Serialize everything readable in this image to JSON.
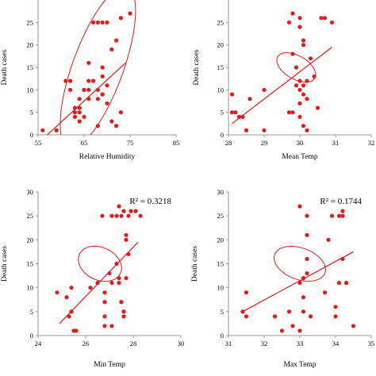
{
  "chart_data": [
    {
      "type": "scatter",
      "xlabel": "Relative Humidity",
      "ylabel": "Death cases",
      "xlim": [
        55,
        85
      ],
      "ylim": [
        0,
        30
      ],
      "xticks": [
        "55",
        "65",
        "75",
        "85"
      ],
      "yticks": [
        "0",
        "5",
        "10",
        "15",
        "20",
        "25"
      ],
      "r2_label": "",
      "points": [
        [
          56,
          1
        ],
        [
          59,
          1
        ],
        [
          61,
          12
        ],
        [
          62,
          10
        ],
        [
          62,
          12
        ],
        [
          63,
          4
        ],
        [
          63,
          5
        ],
        [
          63,
          6
        ],
        [
          64,
          8
        ],
        [
          64,
          3
        ],
        [
          64,
          5
        ],
        [
          64,
          6
        ],
        [
          65,
          4
        ],
        [
          65,
          10
        ],
        [
          65,
          10
        ],
        [
          66,
          10
        ],
        [
          66,
          16
        ],
        [
          66,
          12
        ],
        [
          66,
          8
        ],
        [
          67,
          25
        ],
        [
          67,
          12
        ],
        [
          68,
          25
        ],
        [
          68,
          10
        ],
        [
          68,
          2
        ],
        [
          68,
          8
        ],
        [
          69,
          25
        ],
        [
          69,
          13
        ],
        [
          69,
          15
        ],
        [
          69,
          9
        ],
        [
          69,
          9
        ],
        [
          70,
          25
        ],
        [
          70,
          11
        ],
        [
          70,
          7
        ],
        [
          71,
          19
        ],
        [
          72,
          21
        ],
        [
          73,
          5
        ],
        [
          73,
          26
        ],
        [
          75,
          27
        ],
        [
          71,
          3
        ],
        [
          72,
          2
        ]
      ],
      "trendline": [
        [
          57,
          0
        ],
        [
          74,
          16
        ]
      ],
      "ellipse": {
        "cx": 68,
        "cy": 15,
        "angle": -70,
        "rx": 19,
        "ry": 5.5
      },
      "color": "#e41a1c"
    },
    {
      "type": "scatter",
      "xlabel": "Mean Temp",
      "ylabel": "Death cases",
      "xlim": [
        28,
        32
      ],
      "ylim": [
        0,
        30
      ],
      "xticks": [
        "28",
        "29",
        "30",
        "31",
        "32"
      ],
      "yticks": [
        "0",
        "5",
        "10",
        "15",
        "20",
        "25"
      ],
      "r2_label": "",
      "points": [
        [
          28.1,
          5
        ],
        [
          28.1,
          9
        ],
        [
          28.2,
          5
        ],
        [
          28.3,
          4
        ],
        [
          28.4,
          4
        ],
        [
          28.5,
          1
        ],
        [
          28.6,
          8
        ],
        [
          29,
          10
        ],
        [
          29,
          1
        ],
        [
          29.7,
          25
        ],
        [
          29.7,
          5
        ],
        [
          29.8,
          27
        ],
        [
          29.8,
          5
        ],
        [
          29.8,
          18
        ],
        [
          29.9,
          15
        ],
        [
          29.9,
          11
        ],
        [
          30,
          26
        ],
        [
          30,
          24
        ],
        [
          30,
          12
        ],
        [
          30,
          10
        ],
        [
          30,
          7
        ],
        [
          30,
          4
        ],
        [
          30.1,
          21
        ],
        [
          30.1,
          20
        ],
        [
          30.1,
          11
        ],
        [
          30.1,
          9
        ],
        [
          30.2,
          1
        ],
        [
          30.2,
          12
        ],
        [
          30.2,
          8
        ],
        [
          30.3,
          17
        ],
        [
          30.4,
          13
        ],
        [
          30.5,
          6
        ],
        [
          30.6,
          26
        ],
        [
          30.7,
          26
        ],
        [
          30.9,
          25
        ],
        [
          30.1,
          2
        ]
      ],
      "trendline": [
        [
          28.1,
          2.5
        ],
        [
          30.9,
          19.5
        ]
      ],
      "ellipse": {
        "cx": 29.9,
        "cy": 15,
        "angle": -60,
        "rx": 2.6,
        "ry": 0.6
      },
      "color": "#e41a1c"
    },
    {
      "type": "scatter",
      "xlabel": "Min Temp",
      "ylabel": "Death cases",
      "xlim": [
        24,
        30
      ],
      "ylim": [
        0,
        30
      ],
      "xticks": [
        "24",
        "26",
        "28",
        "30"
      ],
      "yticks": [
        "0",
        "5",
        "10",
        "15",
        "20",
        "25",
        "30"
      ],
      "r2_label": "R² = 0.3218",
      "points": [
        [
          24.8,
          9
        ],
        [
          25.2,
          8
        ],
        [
          25.3,
          4
        ],
        [
          25.4,
          5
        ],
        [
          25.4,
          5
        ],
        [
          25.4,
          10
        ],
        [
          25.5,
          1
        ],
        [
          25.6,
          1
        ],
        [
          26.2,
          10
        ],
        [
          26.5,
          11
        ],
        [
          26.7,
          25
        ],
        [
          26.8,
          9
        ],
        [
          26.8,
          7
        ],
        [
          26.8,
          4
        ],
        [
          26.8,
          2
        ],
        [
          27,
          13
        ],
        [
          27.1,
          11
        ],
        [
          27.1,
          2
        ],
        [
          27.3,
          25
        ],
        [
          27.3,
          15
        ],
        [
          27.4,
          27
        ],
        [
          27.4,
          12
        ],
        [
          27.4,
          11
        ],
        [
          27.5,
          25
        ],
        [
          27.5,
          7
        ],
        [
          27.6,
          26
        ],
        [
          27.6,
          5
        ],
        [
          27.6,
          4
        ],
        [
          27.7,
          20
        ],
        [
          27.7,
          21
        ],
        [
          27.7,
          12
        ],
        [
          27.8,
          25
        ],
        [
          27.8,
          17
        ],
        [
          27.9,
          26
        ],
        [
          28.1,
          26
        ],
        [
          28.3,
          25
        ],
        [
          27.1,
          25
        ]
      ],
      "trendline": [
        [
          24.9,
          2.5
        ],
        [
          28.2,
          19.5
        ]
      ],
      "ellipse": {
        "cx": 26.6,
        "cy": 15,
        "angle": -65,
        "rx": 3.4,
        "ry": 0.95
      },
      "color": "#e41a1c"
    },
    {
      "type": "scatter",
      "xlabel": "Max Temp",
      "ylabel": "Death cases",
      "xlim": [
        31,
        35
      ],
      "ylim": [
        0,
        30
      ],
      "xticks": [
        "31",
        "32",
        "33",
        "34",
        "35"
      ],
      "yticks": [
        "0",
        "5",
        "10",
        "15",
        "20",
        "25",
        "30"
      ],
      "r2_label": "R² = 0.1744",
      "points": [
        [
          31.4,
          5
        ],
        [
          31.4,
          5
        ],
        [
          31.5,
          9
        ],
        [
          31.5,
          4
        ],
        [
          32.3,
          4
        ],
        [
          32.5,
          1
        ],
        [
          32.7,
          5
        ],
        [
          32.8,
          2
        ],
        [
          33,
          27
        ],
        [
          33,
          11
        ],
        [
          33,
          1
        ],
        [
          33.1,
          12
        ],
        [
          33.1,
          8
        ],
        [
          33.1,
          5
        ],
        [
          33.2,
          25
        ],
        [
          33.2,
          21
        ],
        [
          33.2,
          16
        ],
        [
          33.2,
          13
        ],
        [
          33.3,
          4
        ],
        [
          33.7,
          9
        ],
        [
          33.8,
          20
        ],
        [
          33.9,
          25
        ],
        [
          34,
          6
        ],
        [
          34,
          4
        ],
        [
          34.1,
          25
        ],
        [
          34.1,
          11
        ],
        [
          34.2,
          26
        ],
        [
          34.2,
          16
        ],
        [
          34.3,
          11
        ],
        [
          34.5,
          2
        ],
        [
          34.2,
          25
        ]
      ],
      "trendline": [
        [
          31.4,
          5
        ],
        [
          34.5,
          17.5
        ]
      ],
      "ellipse": {
        "cx": 33,
        "cy": 15,
        "angle": -70,
        "rx": 3.3,
        "ry": 0.75
      },
      "color": "#e41a1c"
    }
  ]
}
